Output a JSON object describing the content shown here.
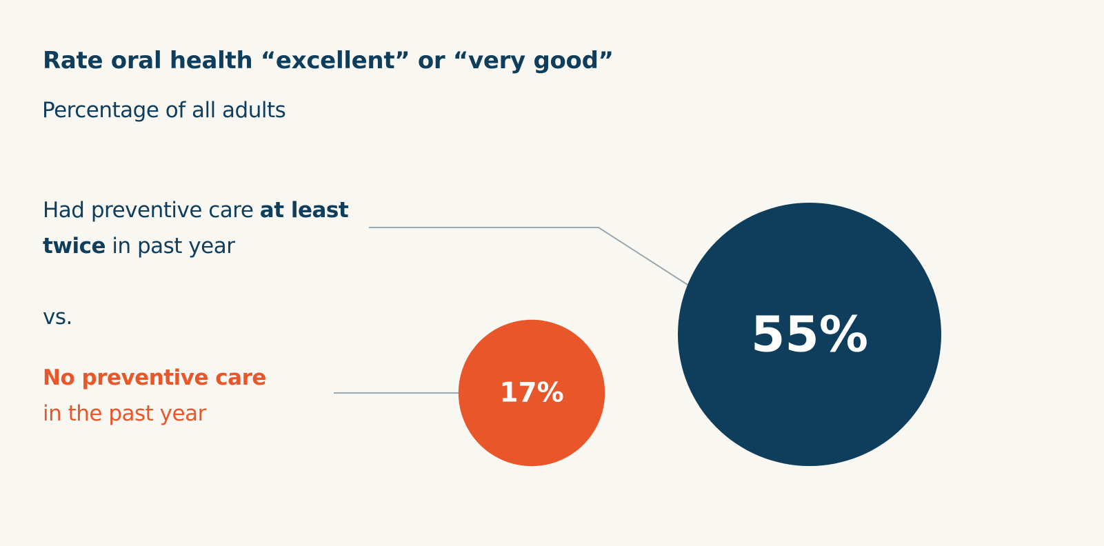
{
  "chart_data": {
    "type": "bubble",
    "title": "Rate oral health “excellent” or “very good”",
    "subtitle": "Percentage of all adults",
    "unit": "%",
    "comparison_word": "vs.",
    "series": [
      {
        "label_parts": [
          "Had preventive care ",
          "at least twice",
          " in past year"
        ],
        "value": 55,
        "value_label": "55%",
        "color": "#0f3d5c"
      },
      {
        "label_parts": [
          "No preventive care",
          "in the past year"
        ],
        "value": 17,
        "value_label": "17%",
        "color": "#e8562a"
      }
    ]
  },
  "colors": {
    "background": "#f8f7f1",
    "text": "#0f3d5c",
    "accent": "#e8562a",
    "leader_line": "#9aa8b0"
  }
}
